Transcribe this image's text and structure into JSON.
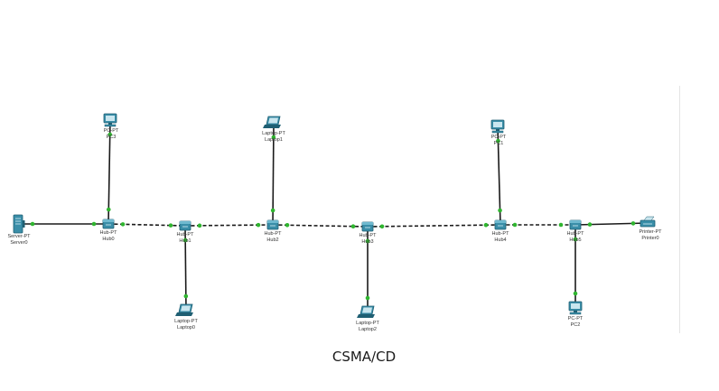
{
  "diagram": {
    "caption": "CSMA/CD",
    "colors": {
      "link": "#1a1a1a",
      "link_up": "#2fb52f",
      "device_fill": "#3a8ea8",
      "device_dark": "#1f5f73",
      "label": "#333333"
    },
    "devices": [
      {
        "id": "server0",
        "type": "server",
        "type_label": "Server-PT",
        "name": "Server0"
      },
      {
        "id": "hub0",
        "type": "hub",
        "type_label": "Hub-PT",
        "name": "Hub0"
      },
      {
        "id": "pc3",
        "type": "pc",
        "type_label": "PC-PT",
        "name": "PC3"
      },
      {
        "id": "hub1",
        "type": "hub",
        "type_label": "Hub-PT",
        "name": "Hub1"
      },
      {
        "id": "laptop0",
        "type": "laptop",
        "type_label": "Laptop-PT",
        "name": "Laptop0"
      },
      {
        "id": "hub2",
        "type": "hub",
        "type_label": "Hub-PT",
        "name": "Hub2"
      },
      {
        "id": "laptop1",
        "type": "laptop",
        "type_label": "Laptop-PT",
        "name": "Laptop1"
      },
      {
        "id": "hub3",
        "type": "hub",
        "type_label": "Hub-PT",
        "name": "Hub3"
      },
      {
        "id": "laptop2",
        "type": "laptop",
        "type_label": "Laptop-PT",
        "name": "Laptop2"
      },
      {
        "id": "hub4",
        "type": "hub",
        "type_label": "Hub-PT",
        "name": "Hub4"
      },
      {
        "id": "pc1",
        "type": "pc",
        "type_label": "PC-PT",
        "name": "PC1"
      },
      {
        "id": "hub5",
        "type": "hub",
        "type_label": "Hub-PT",
        "name": "Hub5"
      },
      {
        "id": "pc2",
        "type": "pc",
        "type_label": "PC-PT",
        "name": "PC2"
      },
      {
        "id": "printer0",
        "type": "printer",
        "type_label": "Printer-PT",
        "name": "Printer0"
      }
    ],
    "links": [
      {
        "from": "server0",
        "to": "hub0",
        "style": "straight"
      },
      {
        "from": "hub0",
        "to": "pc3",
        "style": "straight"
      },
      {
        "from": "hub0",
        "to": "hub1",
        "style": "crossover"
      },
      {
        "from": "hub1",
        "to": "laptop0",
        "style": "straight"
      },
      {
        "from": "hub1",
        "to": "hub2",
        "style": "crossover"
      },
      {
        "from": "hub2",
        "to": "laptop1",
        "style": "straight"
      },
      {
        "from": "hub2",
        "to": "hub3",
        "style": "crossover"
      },
      {
        "from": "hub3",
        "to": "laptop2",
        "style": "straight"
      },
      {
        "from": "hub3",
        "to": "hub4",
        "style": "crossover"
      },
      {
        "from": "hub4",
        "to": "pc1",
        "style": "straight"
      },
      {
        "from": "hub4",
        "to": "hub5",
        "style": "crossover"
      },
      {
        "from": "hub5",
        "to": "pc2",
        "style": "straight"
      },
      {
        "from": "hub5",
        "to": "printer0",
        "style": "straight"
      }
    ]
  }
}
